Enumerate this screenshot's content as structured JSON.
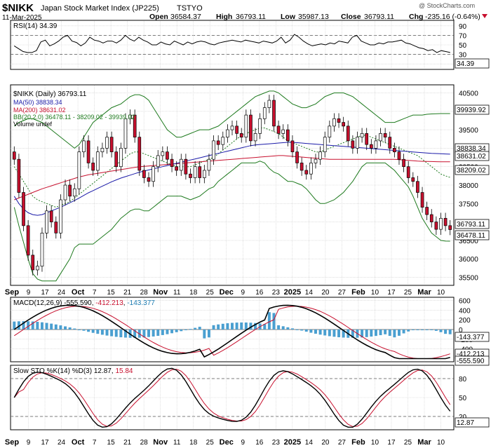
{
  "header": {
    "symbol": "$NIKK",
    "name": "Japan Stock Market Index (JP225)",
    "exchange": "TSTYO",
    "date": "11-Mar-2025",
    "watermark": "@ StockCharts.com",
    "ohlc": {
      "open_label": "Open",
      "open": "36584.37",
      "high_label": "High",
      "high": "36793.11",
      "low_label": "Low",
      "low": "35987.13",
      "close_label": "Close",
      "close": "36793.11",
      "chg_label": "Chg",
      "chg": "-235.16 (-0.64%)"
    }
  },
  "colors": {
    "up": "#ffffff",
    "down": "#c8102e",
    "ma50": "#1a1aa8",
    "ma200": "#c8102e",
    "bb": "#1e7a1e",
    "macd_hist": "#4a9fd0",
    "grid": "#cccccc"
  },
  "x_labels": [
    "Sep",
    "9",
    "17",
    "24",
    "Oct",
    "7",
    "15",
    "21",
    "28",
    "Nov",
    "11",
    "18",
    "25",
    "Dec",
    "9",
    "16",
    "23",
    "2025",
    "14",
    "20",
    "27",
    "Feb",
    "10",
    "17",
    "25",
    "Mar",
    "10"
  ],
  "chart_data": [
    {
      "type": "line",
      "panel": "rsi",
      "label": "RSI(14) 34.39",
      "y_ticks": [
        "10",
        "30",
        "50",
        "70",
        "90"
      ],
      "ylim": [
        0,
        100
      ],
      "last_value_badge": "34.39",
      "values": [
        48,
        42,
        36,
        34,
        34,
        38,
        56,
        60,
        48,
        52,
        58,
        66,
        70,
        58,
        55,
        48,
        54,
        66,
        60,
        58,
        54,
        58,
        58,
        54,
        60,
        70,
        62,
        58,
        66,
        60,
        56,
        50,
        50,
        56,
        52,
        50,
        58,
        54,
        50,
        56,
        52,
        56,
        58,
        56,
        52,
        50,
        54,
        56,
        58,
        60,
        58,
        56,
        60,
        58,
        56,
        54,
        58,
        56,
        54,
        58,
        66,
        54,
        60,
        72,
        66,
        58,
        52,
        48,
        50,
        52,
        50,
        54,
        52,
        58,
        56,
        54,
        66,
        70,
        58,
        54,
        50,
        50,
        54,
        52,
        56,
        56,
        58,
        60,
        54,
        52,
        48,
        44,
        42,
        38,
        40,
        34,
        38,
        36,
        34
      ]
    },
    {
      "type": "candlestick",
      "panel": "price",
      "legend": {
        "main": "$NIKK (Daily) 36793.11",
        "ma50": "MA(50) 38838.34",
        "ma200": "MA(200) 38631.02",
        "bb": "BB(20,2.0) 36478.11 - 38209.02 - 39939.92",
        "volume": "Volume undef"
      },
      "y_ticks": [
        "35500",
        "36000",
        "36500",
        "37000",
        "37500",
        "38000",
        "38500",
        "39000",
        "39500",
        "40000",
        "40500"
      ],
      "ylim": [
        35300,
        40700
      ],
      "right_badges": [
        "39939.92",
        "38838.34",
        "38631.02",
        "38209.02",
        "36793.11",
        "36478.11"
      ],
      "close": [
        38700,
        37800,
        36900,
        36100,
        35700,
        35800,
        36700,
        37300,
        37000,
        36700,
        37600,
        38000,
        37700,
        37900,
        38900,
        39200,
        38600,
        38400,
        38900,
        39000,
        39300,
        38900,
        38500,
        39000,
        39800,
        39900,
        39300,
        38400,
        38200,
        38100,
        38500,
        38800,
        38900,
        38700,
        38500,
        38400,
        38700,
        38300,
        38200,
        38500,
        38200,
        38400,
        38700,
        39200,
        39100,
        39300,
        39500,
        39600,
        39400,
        39300,
        39900,
        39200,
        39400,
        39800,
        40100,
        40300,
        39600,
        39400,
        39500,
        39200,
        38900,
        38600,
        38400,
        38300,
        38600,
        38700,
        38900,
        39300,
        39600,
        39800,
        39700,
        39600,
        39200,
        39000,
        39300,
        39400,
        39100,
        39000,
        39200,
        39400,
        39300,
        39000,
        38900,
        38700,
        38500,
        38200,
        38100,
        37800,
        37400,
        37200,
        37000,
        36800,
        37100,
        36900,
        36793
      ],
      "ma50": [
        37700,
        37500,
        37350,
        37250,
        37200,
        37180,
        37200,
        37250,
        37300,
        37350,
        37400,
        37460,
        37520,
        37580,
        37650,
        37720,
        37790,
        37850,
        37910,
        37970,
        38030,
        38090,
        38140,
        38190,
        38230,
        38270,
        38310,
        38350,
        38380,
        38410,
        38440,
        38470,
        38500,
        38530,
        38560,
        38590,
        38620,
        38650,
        38680,
        38710,
        38740,
        38770,
        38800,
        38830,
        38860,
        38890,
        38920,
        38950,
        38980,
        39010,
        39040,
        39070,
        39090,
        39100,
        39110,
        39120,
        39130,
        39140,
        39150,
        39160,
        39160,
        39150,
        39140,
        39130,
        39120,
        39110,
        39100,
        39090,
        39080,
        39070,
        39060,
        39050,
        39040,
        39030,
        39020,
        39010,
        39000,
        38990,
        38980,
        38970,
        38960,
        38950,
        38940,
        38930,
        38920,
        38910,
        38900,
        38890,
        38880,
        38870,
        38860,
        38855,
        38850,
        38845,
        38838
      ],
      "ma200": [
        37600,
        37650,
        37700,
        37750,
        37800,
        37850,
        37900,
        37940,
        37980,
        38020,
        38060,
        38100,
        38140,
        38180,
        38220,
        38250,
        38280,
        38300,
        38320,
        38340,
        38360,
        38380,
        38400,
        38420,
        38440,
        38460,
        38480,
        38500,
        38510,
        38520,
        38530,
        38540,
        38550,
        38560,
        38570,
        38580,
        38590,
        38600,
        38610,
        38620,
        38630,
        38640,
        38650,
        38660,
        38670,
        38680,
        38690,
        38700,
        38710,
        38720,
        38730,
        38740,
        38750,
        38760,
        38770,
        38780,
        38790,
        38800,
        38800,
        38790,
        38780,
        38770,
        38760,
        38750,
        38740,
        38730,
        38720,
        38710,
        38700,
        38700,
        38700,
        38700,
        38700,
        38700,
        38700,
        38700,
        38700,
        38700,
        38700,
        38700,
        38700,
        38700,
        38700,
        38690,
        38680,
        38670,
        38660,
        38650,
        38645,
        38640,
        38638,
        38636,
        38634,
        38632,
        38631
      ],
      "bb_upper": [
        39600,
        39700,
        39750,
        39800,
        39800,
        39750,
        39700,
        39600,
        39500,
        39400,
        39300,
        39200,
        39100,
        39000,
        39100,
        39300,
        39500,
        39700,
        39800,
        39900,
        40000,
        40100,
        40150,
        40200,
        40300,
        40400,
        40450,
        40450,
        40400,
        40300,
        40100,
        39900,
        39700,
        39500,
        39400,
        39300,
        39300,
        39350,
        39400,
        39450,
        39500,
        39500,
        39500,
        39550,
        39600,
        39700,
        39800,
        39900,
        40000,
        40100,
        40200,
        40300,
        40400,
        40450,
        40500,
        40550,
        40550,
        40500,
        40400,
        40300,
        40200,
        40150,
        40100,
        40100,
        40150,
        40200,
        40300,
        40400,
        40450,
        40500,
        40500,
        40500,
        40450,
        40400,
        40300,
        40200,
        40100,
        40000,
        39900,
        39800,
        39700,
        39700,
        39700,
        39750,
        39800,
        39850,
        39900,
        39900,
        39900,
        39920,
        39930,
        39935,
        39940,
        39940,
        39940
      ],
      "bb_mid": [
        38500,
        38300,
        38100,
        37900,
        37700,
        37600,
        37550,
        37500,
        37450,
        37400,
        37450,
        37500,
        37550,
        37650,
        37750,
        37850,
        37950,
        38050,
        38150,
        38250,
        38350,
        38450,
        38550,
        38650,
        38750,
        38850,
        38900,
        38900,
        38850,
        38800,
        38750,
        38700,
        38650,
        38600,
        38550,
        38500,
        38500,
        38500,
        38500,
        38550,
        38600,
        38650,
        38700,
        38750,
        38850,
        38950,
        39050,
        39150,
        39250,
        39350,
        39400,
        39450,
        39500,
        39550,
        39550,
        39500,
        39450,
        39400,
        39300,
        39200,
        39150,
        39100,
        39050,
        39000,
        38950,
        38900,
        38900,
        38950,
        39000,
        39050,
        39100,
        39150,
        39200,
        39250,
        39300,
        39350,
        39350,
        39300,
        39250,
        39200,
        39150,
        39100,
        39050,
        39000,
        38950,
        38900,
        38850,
        38800,
        38700,
        38600,
        38500,
        38400,
        38300,
        38250,
        38209
      ],
      "bb_lower": [
        37400,
        36900,
        36450,
        36000,
        35600,
        35450,
        35400,
        35400,
        35400,
        35400,
        35600,
        35800,
        36000,
        36300,
        36400,
        36400,
        36400,
        36400,
        36500,
        36600,
        36700,
        36800,
        36950,
        37100,
        37200,
        37300,
        37350,
        37350,
        37300,
        37300,
        37400,
        37500,
        37600,
        37700,
        37700,
        37700,
        37700,
        37650,
        37600,
        37650,
        37700,
        37800,
        37900,
        37950,
        38100,
        38200,
        38300,
        38400,
        38500,
        38600,
        38600,
        38600,
        38600,
        38650,
        38600,
        38450,
        38350,
        38300,
        38200,
        38100,
        38100,
        38050,
        38000,
        37900,
        37750,
        37600,
        37500,
        37500,
        37550,
        37600,
        37700,
        37800,
        37950,
        38100,
        38300,
        38500,
        38600,
        38600,
        38600,
        38600,
        38600,
        38500,
        38400,
        38250,
        38100,
        37950,
        37700,
        37400,
        37100,
        36900,
        36700,
        36600,
        36500,
        36480,
        36478
      ]
    },
    {
      "type": "line",
      "panel": "macd",
      "label": "MACD(12,26,9) -555.590, -412.213, -143.377",
      "label_parts": {
        "prefix": "MACD(12,26,9) ",
        "macd": "-555.590",
        "sep1": ", ",
        "signal": "-412.213",
        "sep2": ", ",
        "hist": "-143.377"
      },
      "y_ticks": [
        "-400",
        "-200",
        "0",
        "200",
        "400",
        "600"
      ],
      "ylim": [
        -650,
        650
      ],
      "right_badges": [
        "-143.377",
        "-412.213",
        "-555.590"
      ]
    },
    {
      "type": "line",
      "panel": "sto",
      "label": "Slow STO %K(14) %D(3) 12.87, 15.84",
      "label_parts": {
        "prefix": "Slow STO %K(14) %D(3) ",
        "k": "12.87",
        "sep": ", ",
        "d": "15.84"
      },
      "y_ticks": [
        "20",
        "50",
        "80"
      ],
      "ylim": [
        0,
        100
      ],
      "right_badges": [
        "12.87"
      ]
    }
  ]
}
